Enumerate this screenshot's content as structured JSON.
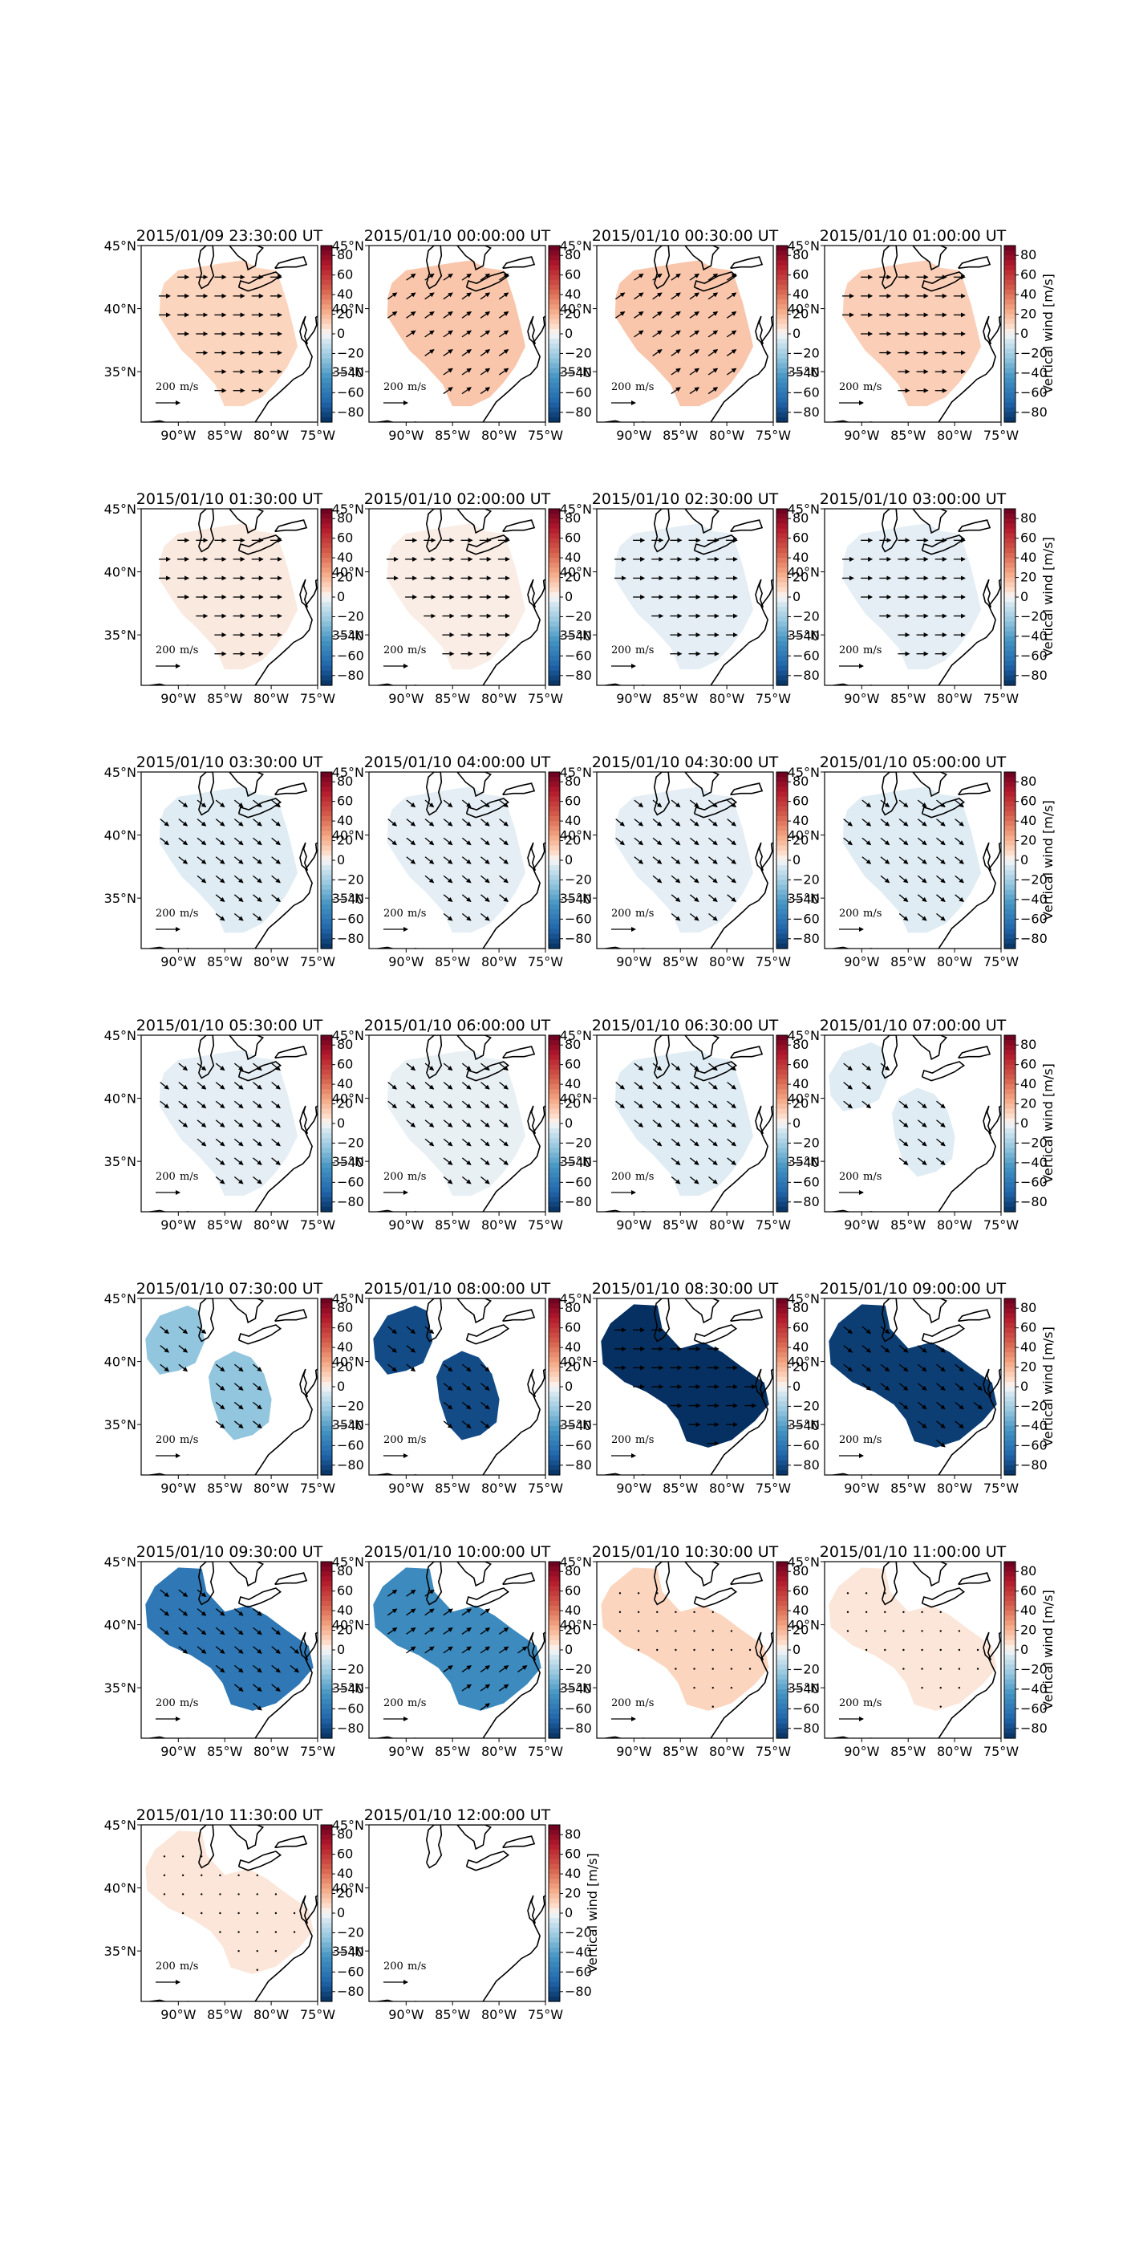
{
  "figure": {
    "units_label": "Vertical wind [m/s]",
    "reference_arrow_label": "200",
    "reference_arrow_unit": "m/s",
    "lat_ticks": [
      "45°N",
      "40°N",
      "35°N"
    ],
    "lon_ticks": [
      "90°W",
      "85°W",
      "80°W",
      "75°W"
    ],
    "colorbar_ticks": [
      "80",
      "60",
      "40",
      "20",
      "0",
      "−20",
      "−40",
      "−60",
      "−80"
    ],
    "colorbar_range": [
      -90,
      90
    ],
    "colormap": "RdBu_r"
  },
  "panels": [
    {
      "title": "2015/01/09 23:30:00 UT",
      "vertical_wind": 10,
      "pattern": "full",
      "vector_dir": "east"
    },
    {
      "title": "2015/01/10 00:00:00 UT",
      "vertical_wind": 15,
      "pattern": "full",
      "vector_dir": "northeast"
    },
    {
      "title": "2015/01/10 00:30:00 UT",
      "vertical_wind": 15,
      "pattern": "full",
      "vector_dir": "northeast"
    },
    {
      "title": "2015/01/10 01:00:00 UT",
      "vertical_wind": 12,
      "pattern": "full",
      "vector_dir": "east"
    },
    {
      "title": "2015/01/10 01:30:00 UT",
      "vertical_wind": 4,
      "pattern": "full",
      "vector_dir": "east"
    },
    {
      "title": "2015/01/10 02:00:00 UT",
      "vertical_wind": 3,
      "pattern": "full",
      "vector_dir": "east"
    },
    {
      "title": "2015/01/10 02:30:00 UT",
      "vertical_wind": -4,
      "pattern": "full",
      "vector_dir": "east"
    },
    {
      "title": "2015/01/10 03:00:00 UT",
      "vertical_wind": -4,
      "pattern": "full",
      "vector_dir": "east"
    },
    {
      "title": "2015/01/10 03:30:00 UT",
      "vertical_wind": -5,
      "pattern": "full",
      "vector_dir": "southeast"
    },
    {
      "title": "2015/01/10 04:00:00 UT",
      "vertical_wind": -4,
      "pattern": "full",
      "vector_dir": "southeast"
    },
    {
      "title": "2015/01/10 04:30:00 UT",
      "vertical_wind": -4,
      "pattern": "full",
      "vector_dir": "southeast"
    },
    {
      "title": "2015/01/10 05:00:00 UT",
      "vertical_wind": -5,
      "pattern": "full",
      "vector_dir": "southeast"
    },
    {
      "title": "2015/01/10 05:30:00 UT",
      "vertical_wind": -4,
      "pattern": "full",
      "vector_dir": "southeast"
    },
    {
      "title": "2015/01/10 06:00:00 UT",
      "vertical_wind": -3,
      "pattern": "full",
      "vector_dir": "southeast"
    },
    {
      "title": "2015/01/10 06:30:00 UT",
      "vertical_wind": -5,
      "pattern": "full",
      "vector_dir": "southeast"
    },
    {
      "title": "2015/01/10 07:00:00 UT",
      "vertical_wind": -5,
      "pattern": "split",
      "vector_dir": "southeast"
    },
    {
      "title": "2015/01/10 07:30:00 UT",
      "vertical_wind": -25,
      "pattern": "split",
      "vector_dir": "southeast"
    },
    {
      "title": "2015/01/10 08:00:00 UT",
      "vertical_wind": -80,
      "pattern": "split",
      "vector_dir": "southeast"
    },
    {
      "title": "2015/01/10 08:30:00 UT",
      "vertical_wind": -90,
      "pattern": "merged",
      "vector_dir": "east"
    },
    {
      "title": "2015/01/10 09:00:00 UT",
      "vertical_wind": -85,
      "pattern": "merged",
      "vector_dir": "southeast"
    },
    {
      "title": "2015/01/10 09:30:00 UT",
      "vertical_wind": -60,
      "pattern": "merged",
      "vector_dir": "southeast"
    },
    {
      "title": "2015/01/10 10:00:00 UT",
      "vertical_wind": -50,
      "pattern": "merged",
      "vector_dir": "northeast"
    },
    {
      "title": "2015/01/10 10:30:00 UT",
      "vertical_wind": 10,
      "pattern": "merged",
      "vector_dir": "none"
    },
    {
      "title": "2015/01/10 11:00:00 UT",
      "vertical_wind": 5,
      "pattern": "merged",
      "vector_dir": "none"
    },
    {
      "title": "2015/01/10 11:30:00 UT",
      "vertical_wind": 5,
      "pattern": "merged",
      "vector_dir": "none"
    },
    {
      "title": "2015/01/10 12:00:00 UT",
      "vertical_wind": 0,
      "pattern": "empty",
      "vector_dir": "none"
    }
  ]
}
